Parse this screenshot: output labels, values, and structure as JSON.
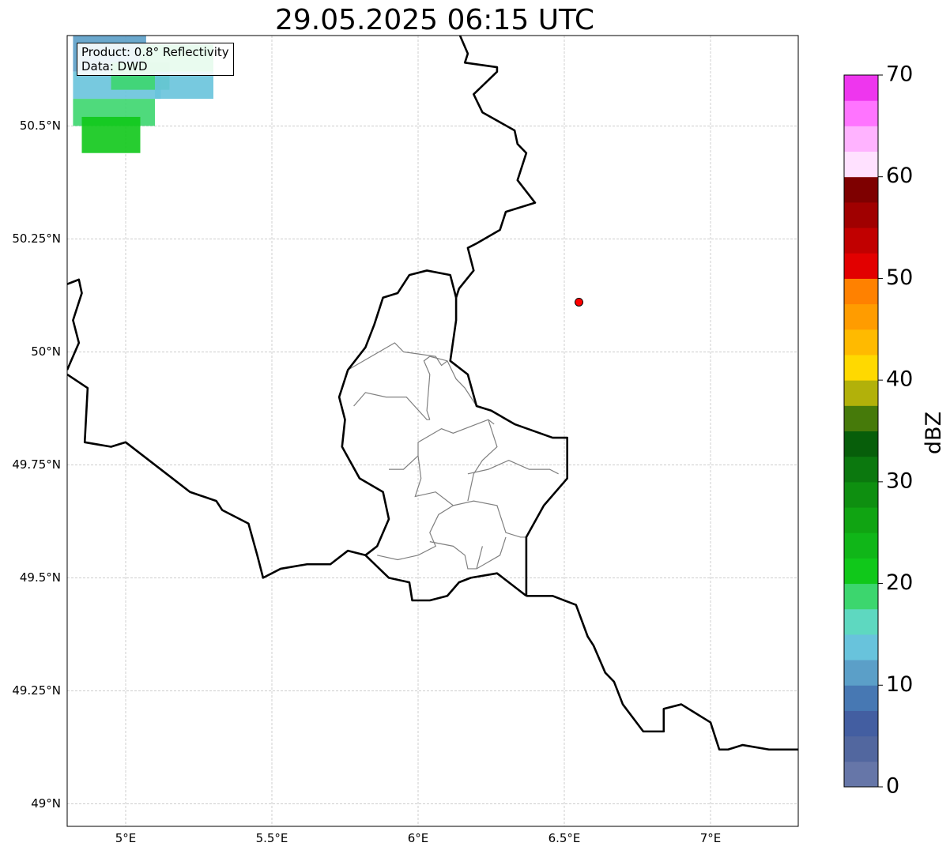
{
  "title": "29.05.2025 06:15 UTC",
  "info": {
    "product": "Product: 0.8° Reflectivity",
    "source": "Data: DWD"
  },
  "map": {
    "extent": {
      "lon_min": 4.8,
      "lon_max": 7.3,
      "lat_min": 48.95,
      "lat_max": 50.7
    },
    "lat_ticks": [
      {
        "value": 49.0,
        "label": "49°N"
      },
      {
        "value": 49.25,
        "label": "49.25°N"
      },
      {
        "value": 49.5,
        "label": "49.5°N"
      },
      {
        "value": 49.75,
        "label": "49.75°N"
      },
      {
        "value": 50.0,
        "label": "50°N"
      },
      {
        "value": 50.25,
        "label": "50.25°N"
      },
      {
        "value": 50.5,
        "label": "50.5°N"
      }
    ],
    "lon_ticks": [
      {
        "value": 5.0,
        "label": "5°E"
      },
      {
        "value": 5.5,
        "label": "5.5°E"
      },
      {
        "value": 6.0,
        "label": "6°E"
      },
      {
        "value": 6.5,
        "label": "6.5°E"
      },
      {
        "value": 7.0,
        "label": "7°E"
      }
    ],
    "radar_site": {
      "lon": 6.55,
      "lat": 50.11,
      "color": "#ff0000"
    },
    "borders": {
      "belgium_germany": [
        [
          6.13,
          50.72
        ],
        [
          6.17,
          50.66
        ],
        [
          6.16,
          50.64
        ],
        [
          6.27,
          50.63
        ],
        [
          6.27,
          50.62
        ],
        [
          6.19,
          50.57
        ],
        [
          6.22,
          50.53
        ],
        [
          6.33,
          50.49
        ],
        [
          6.34,
          50.46
        ],
        [
          6.37,
          50.44
        ],
        [
          6.34,
          50.38
        ],
        [
          6.4,
          50.33
        ],
        [
          6.3,
          50.31
        ],
        [
          6.28,
          50.27
        ],
        [
          6.2,
          50.24
        ],
        [
          6.17,
          50.23
        ],
        [
          6.19,
          50.18
        ],
        [
          6.14,
          50.14
        ],
        [
          6.13,
          50.12
        ]
      ],
      "belgium_luxembourg": [
        [
          6.13,
          50.12
        ],
        [
          6.11,
          50.17
        ],
        [
          6.03,
          50.18
        ],
        [
          5.97,
          50.17
        ],
        [
          5.93,
          50.13
        ],
        [
          5.88,
          50.12
        ],
        [
          5.85,
          50.06
        ],
        [
          5.82,
          50.01
        ],
        [
          5.76,
          49.96
        ],
        [
          5.73,
          49.9
        ],
        [
          5.75,
          49.85
        ],
        [
          5.74,
          49.79
        ],
        [
          5.8,
          49.72
        ],
        [
          5.88,
          49.69
        ],
        [
          5.9,
          49.63
        ],
        [
          5.86,
          49.57
        ],
        [
          5.82,
          49.55
        ]
      ],
      "luxembourg_germany": [
        [
          6.13,
          50.12
        ],
        [
          6.13,
          50.07
        ],
        [
          6.11,
          49.98
        ],
        [
          6.17,
          49.95
        ],
        [
          6.2,
          49.88
        ],
        [
          6.25,
          49.87
        ],
        [
          6.33,
          49.84
        ],
        [
          6.46,
          49.81
        ],
        [
          6.51,
          49.81
        ],
        [
          6.51,
          49.72
        ],
        [
          6.43,
          49.66
        ],
        [
          6.37,
          49.59
        ],
        [
          6.37,
          49.46
        ]
      ],
      "luxembourg_france": [
        [
          5.82,
          49.55
        ],
        [
          5.9,
          49.5
        ],
        [
          5.97,
          49.49
        ],
        [
          5.98,
          49.45
        ],
        [
          6.04,
          49.45
        ],
        [
          6.1,
          49.46
        ],
        [
          6.14,
          49.49
        ],
        [
          6.18,
          49.5
        ],
        [
          6.27,
          49.51
        ],
        [
          6.37,
          49.46
        ]
      ],
      "belgium_france": [
        [
          4.8,
          49.95
        ],
        [
          4.87,
          49.92
        ],
        [
          4.86,
          49.8
        ],
        [
          4.95,
          49.79
        ],
        [
          5.0,
          49.8
        ],
        [
          5.08,
          49.76
        ],
        [
          5.16,
          49.72
        ],
        [
          5.22,
          49.69
        ],
        [
          5.31,
          49.67
        ],
        [
          5.33,
          49.65
        ],
        [
          5.42,
          49.62
        ],
        [
          5.45,
          49.55
        ],
        [
          5.47,
          49.5
        ],
        [
          5.53,
          49.52
        ],
        [
          5.62,
          49.53
        ],
        [
          5.7,
          49.53
        ],
        [
          5.76,
          49.56
        ],
        [
          5.82,
          49.55
        ]
      ],
      "france_germany": [
        [
          6.37,
          49.46
        ],
        [
          6.46,
          49.46
        ],
        [
          6.54,
          49.44
        ],
        [
          6.58,
          49.37
        ],
        [
          6.6,
          49.35
        ],
        [
          6.64,
          49.29
        ],
        [
          6.67,
          49.27
        ],
        [
          6.7,
          49.22
        ],
        [
          6.77,
          49.16
        ],
        [
          6.84,
          49.16
        ],
        [
          6.84,
          49.21
        ],
        [
          6.9,
          49.22
        ],
        [
          6.95,
          49.2
        ],
        [
          7.0,
          49.18
        ],
        [
          7.03,
          49.12
        ],
        [
          7.06,
          49.12
        ],
        [
          7.11,
          49.13
        ],
        [
          7.2,
          49.12
        ],
        [
          7.3,
          49.12
        ]
      ],
      "belgium_west": [
        [
          4.8,
          50.15
        ],
        [
          4.84,
          50.16
        ],
        [
          4.85,
          50.13
        ],
        [
          4.82,
          50.07
        ],
        [
          4.84,
          50.02
        ],
        [
          4.8,
          49.96
        ]
      ]
    },
    "cantons": [
      [
        [
          5.78,
          49.88
        ],
        [
          5.82,
          49.91
        ],
        [
          5.89,
          49.9
        ],
        [
          5.96,
          49.9
        ],
        [
          6.03,
          49.85
        ],
        [
          6.04,
          49.85
        ]
      ],
      [
        [
          6.04,
          49.85
        ],
        [
          6.03,
          49.87
        ],
        [
          6.04,
          49.95
        ],
        [
          6.02,
          49.98
        ],
        [
          6.04,
          49.99
        ]
      ],
      [
        [
          6.0,
          49.77
        ],
        [
          6.0,
          49.8
        ],
        [
          6.08,
          49.83
        ],
        [
          6.12,
          49.82
        ],
        [
          6.24,
          49.85
        ],
        [
          6.26,
          49.84
        ]
      ],
      [
        [
          6.0,
          49.77
        ],
        [
          5.95,
          49.74
        ],
        [
          5.9,
          49.74
        ]
      ],
      [
        [
          6.0,
          49.77
        ],
        [
          6.01,
          49.72
        ],
        [
          5.99,
          49.68
        ],
        [
          6.06,
          49.69
        ],
        [
          6.12,
          49.66
        ]
      ],
      [
        [
          6.12,
          49.66
        ],
        [
          6.19,
          49.67
        ],
        [
          6.27,
          49.66
        ],
        [
          6.3,
          49.6
        ],
        [
          6.35,
          49.59
        ],
        [
          6.37,
          49.59
        ]
      ],
      [
        [
          6.12,
          49.66
        ],
        [
          6.07,
          49.64
        ],
        [
          6.04,
          49.6
        ],
        [
          6.06,
          49.57
        ],
        [
          6.0,
          49.55
        ],
        [
          5.93,
          49.54
        ],
        [
          5.86,
          49.55
        ]
      ],
      [
        [
          6.24,
          49.85
        ],
        [
          6.27,
          49.79
        ],
        [
          6.22,
          49.76
        ],
        [
          6.19,
          49.73
        ],
        [
          6.17,
          49.67
        ]
      ],
      [
        [
          6.17,
          49.73
        ],
        [
          6.24,
          49.74
        ],
        [
          6.31,
          49.76
        ],
        [
          6.38,
          49.74
        ],
        [
          6.45,
          49.74
        ],
        [
          6.48,
          49.73
        ]
      ],
      [
        [
          6.04,
          49.58
        ],
        [
          6.12,
          49.57
        ],
        [
          6.16,
          49.55
        ],
        [
          6.17,
          49.52
        ],
        [
          6.2,
          49.52
        ],
        [
          6.28,
          49.55
        ],
        [
          6.3,
          49.59
        ]
      ],
      [
        [
          6.2,
          49.52
        ],
        [
          6.22,
          49.57
        ]
      ],
      [
        [
          5.76,
          49.96
        ],
        [
          5.84,
          49.99
        ],
        [
          5.92,
          50.02
        ],
        [
          5.95,
          50.0
        ],
        [
          6.06,
          49.99
        ],
        [
          6.08,
          49.97
        ],
        [
          6.1,
          49.98
        ]
      ],
      [
        [
          6.04,
          49.99
        ],
        [
          6.1,
          49.98
        ],
        [
          6.13,
          49.94
        ],
        [
          6.16,
          49.92
        ],
        [
          6.2,
          49.88
        ]
      ]
    ],
    "precip_cells": [
      {
        "lon": 4.82,
        "lat": 50.62,
        "w": 0.25,
        "h": 0.08,
        "color": "#5b9fc8"
      },
      {
        "lon": 4.82,
        "lat": 50.56,
        "w": 0.3,
        "h": 0.06,
        "color": "#68c3dc"
      },
      {
        "lon": 4.82,
        "lat": 50.5,
        "w": 0.28,
        "h": 0.06,
        "color": "#3cd66e"
      },
      {
        "lon": 4.85,
        "lat": 50.44,
        "w": 0.2,
        "h": 0.08,
        "color": "#10c81a"
      },
      {
        "lon": 4.95,
        "lat": 50.58,
        "w": 0.2,
        "h": 0.06,
        "color": "#3cd66e"
      },
      {
        "lon": 5.05,
        "lat": 50.62,
        "w": 0.25,
        "h": 0.06,
        "color": "#3cd66e"
      },
      {
        "lon": 5.1,
        "lat": 50.56,
        "w": 0.2,
        "h": 0.06,
        "color": "#68c3dc"
      }
    ]
  },
  "colorbar": {
    "label": "dBZ",
    "vmin": 0,
    "vmax": 70,
    "ticks": [
      {
        "value": 0,
        "label": "0"
      },
      {
        "value": 10,
        "label": "10"
      },
      {
        "value": 20,
        "label": "20"
      },
      {
        "value": 30,
        "label": "30"
      },
      {
        "value": 40,
        "label": "40"
      },
      {
        "value": 50,
        "label": "50"
      },
      {
        "value": 60,
        "label": "60"
      },
      {
        "value": 70,
        "label": "70"
      }
    ],
    "colors": [
      "#6676a8",
      "#52679f",
      "#435ea1",
      "#4778b3",
      "#5b9fc8",
      "#68c3dc",
      "#5ed8c0",
      "#3cd66e",
      "#10c81a",
      "#10b618",
      "#10a412",
      "#0e8f10",
      "#0b780e",
      "#075e0a",
      "#467a0a",
      "#b2b10a",
      "#ffd900",
      "#ffba00",
      "#ff9c00",
      "#ff8100",
      "#e20000",
      "#c10000",
      "#a00000",
      "#7e0000",
      "#ffe1ff",
      "#ffb3ff",
      "#ff74ff",
      "#ee36ee"
    ]
  }
}
